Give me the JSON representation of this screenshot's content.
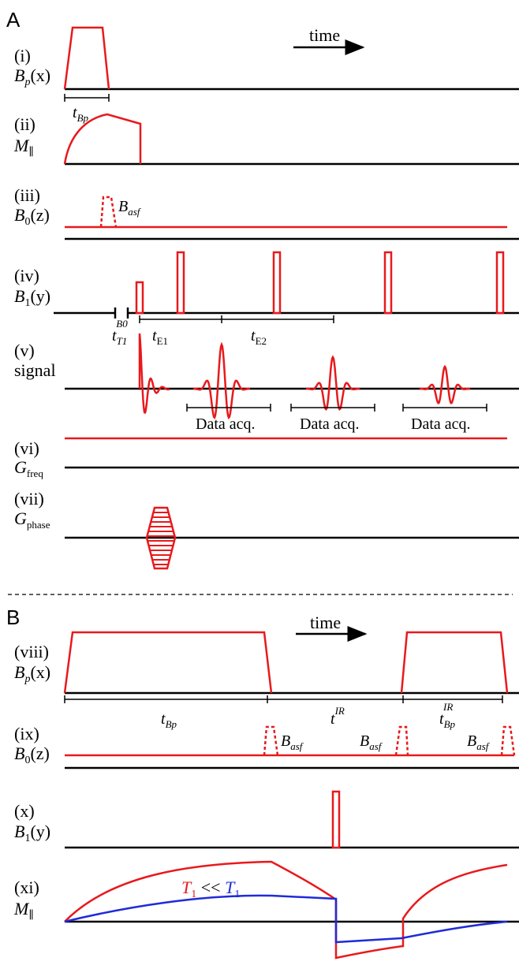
{
  "panel_a": {
    "letter": "A",
    "time_label": "time",
    "rows": {
      "i": {
        "roman": "(i)",
        "sym": "B",
        "sub": "p",
        "arg": "(x)"
      },
      "ii": {
        "roman": "(ii)",
        "sym": "M",
        "sub": "∥",
        "arg": ""
      },
      "iii": {
        "roman": "(iii)",
        "sym": "B",
        "sub": "0",
        "arg": "(z)"
      },
      "iv": {
        "roman": "(iv)",
        "sym": "B",
        "sub": "1",
        "arg": "(y)"
      },
      "v": {
        "roman": "(v)",
        "sym": "signal",
        "sub": "",
        "arg": ""
      },
      "vi": {
        "roman": "(vi)",
        "sym": "G",
        "sub": "freq",
        "arg": ""
      },
      "vii": {
        "roman": "(vii)",
        "sym": "G",
        "sub": "phase",
        "arg": ""
      }
    },
    "annotations": {
      "t_bp": {
        "sym": "t",
        "sub": "Bp"
      },
      "b_asf": {
        "sym": "B",
        "sub": "asf"
      },
      "t_t1_b0": {
        "sym": "t",
        "sub": "T1",
        "sup": "B0"
      },
      "t_e1": {
        "sym": "t",
        "sub": "E1"
      },
      "t_e2": {
        "sym": "t",
        "sub": "E2"
      },
      "data_acq": [
        "Data acq.",
        "Data acq.",
        "Data acq."
      ]
    }
  },
  "panel_b": {
    "letter": "B",
    "time_label": "time",
    "rows": {
      "viii": {
        "roman": "(viii)",
        "sym": "B",
        "sub": "p",
        "arg": "(x)"
      },
      "ix": {
        "roman": "(ix)",
        "sym": "B",
        "sub": "0",
        "arg": "(z)"
      },
      "x": {
        "roman": "(x)",
        "sym": "B",
        "sub": "1",
        "arg": "(y)"
      },
      "xi": {
        "roman": "(xi)",
        "sym": "M",
        "sub": "∥",
        "arg": ""
      }
    },
    "annotations": {
      "t_bp": {
        "sym": "t",
        "sub": "Bp"
      },
      "t_ir": {
        "sym": "t",
        "sup": "IR"
      },
      "t_bp_ir": {
        "sym": "t",
        "sub": "Bp",
        "sup": "IR"
      },
      "b_asf": [
        {
          "sym": "B",
          "sub": "asf"
        },
        {
          "sym": "B",
          "sub": "asf"
        },
        {
          "sym": "B",
          "sub": "asf"
        }
      ],
      "legend": {
        "left": "T",
        "left_sub": "1",
        "op": " << ",
        "right": "T",
        "right_sub": "1",
        "left_color": "#e8191c",
        "right_color": "#1f2bd9"
      }
    }
  },
  "colors": {
    "red": "#e8191c",
    "blue": "#1f2bd9",
    "axis": "#000000"
  }
}
